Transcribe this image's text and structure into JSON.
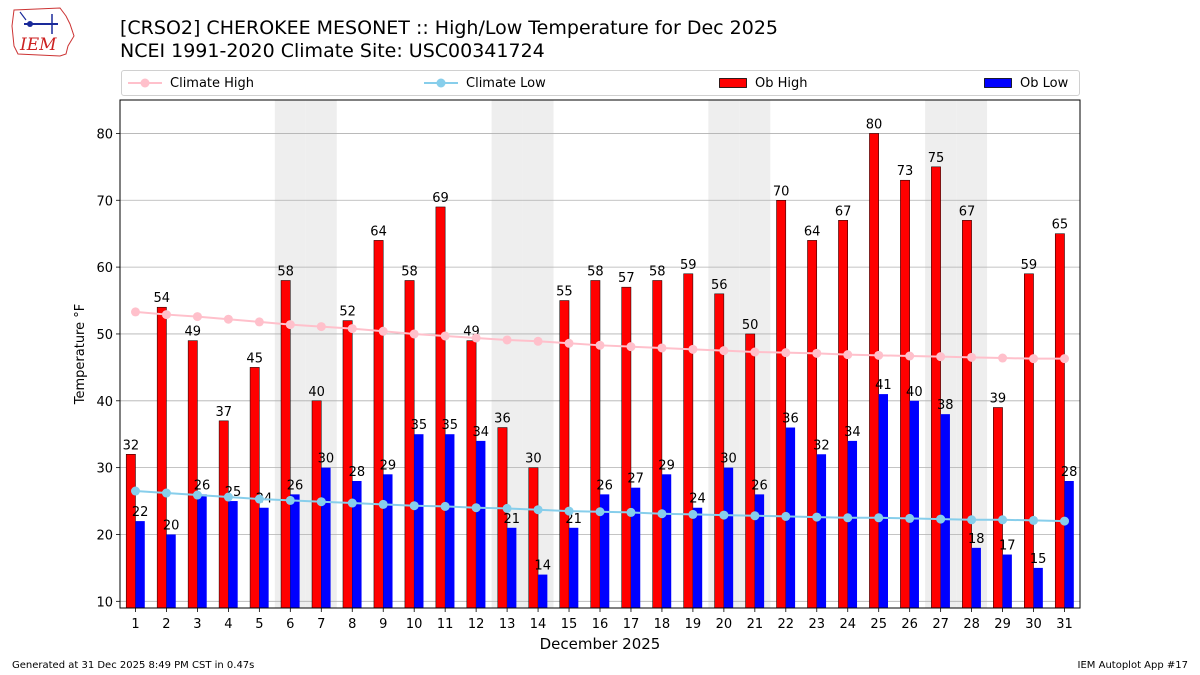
{
  "title_line1": "[CRSO2] CHEROKEE MESONET :: High/Low Temperature for Dec 2025",
  "title_line2": "NCEI 1991-2020 Climate Site: USC00341724",
  "logo_text": "IEM",
  "footer_left": "Generated at 31 Dec 2025 8:49 PM CST in 0.47s",
  "footer_right": "IEM Autoplot App #17",
  "colors": {
    "climate_high": "#ffc0cb",
    "climate_low": "#87ceeb",
    "ob_high": "#ff0000",
    "ob_low": "#0000ff",
    "weekend_band": "#eeeeee",
    "grid": "#b0b0b0"
  },
  "chart_data": {
    "type": "bar",
    "xlabel": "December 2025",
    "ylabel": "Temperature °F",
    "ylim": [
      9,
      85
    ],
    "yticks": [
      10,
      20,
      30,
      40,
      50,
      60,
      70,
      80
    ],
    "grid": "horizontal",
    "legend_position": "top",
    "categories": [
      "1",
      "2",
      "3",
      "4",
      "5",
      "6",
      "7",
      "8",
      "9",
      "10",
      "11",
      "12",
      "13",
      "14",
      "15",
      "16",
      "17",
      "18",
      "19",
      "20",
      "21",
      "22",
      "23",
      "24",
      "25",
      "26",
      "27",
      "28",
      "29",
      "30",
      "31"
    ],
    "weekend_days": [
      6,
      7,
      13,
      14,
      20,
      21,
      27,
      28
    ],
    "series": [
      {
        "name": "Ob High",
        "kind": "bar",
        "color": "#ff0000",
        "values": [
          32,
          54,
          49,
          37,
          45,
          58,
          40,
          52,
          64,
          58,
          69,
          49,
          36,
          30,
          55,
          58,
          57,
          58,
          59,
          56,
          50,
          70,
          64,
          67,
          80,
          73,
          75,
          67,
          39,
          59,
          65
        ]
      },
      {
        "name": "Ob Low",
        "kind": "bar",
        "color": "#0000ff",
        "values": [
          22,
          20,
          26,
          25,
          24,
          26,
          30,
          28,
          29,
          35,
          35,
          34,
          21,
          14,
          21,
          26,
          27,
          29,
          24,
          30,
          26,
          36,
          32,
          34,
          41,
          40,
          38,
          18,
          17,
          15,
          28
        ]
      },
      {
        "name": "Climate High",
        "kind": "line",
        "color": "#ffc0cb",
        "values": [
          53.3,
          52.9,
          52.6,
          52.2,
          51.8,
          51.4,
          51.1,
          50.8,
          50.4,
          50.0,
          49.7,
          49.4,
          49.1,
          48.9,
          48.6,
          48.3,
          48.1,
          47.9,
          47.7,
          47.5,
          47.3,
          47.2,
          47.1,
          46.9,
          46.8,
          46.7,
          46.6,
          46.5,
          46.4,
          46.3,
          46.3
        ]
      },
      {
        "name": "Climate Low",
        "kind": "line",
        "color": "#87ceeb",
        "values": [
          26.5,
          26.2,
          25.9,
          25.6,
          25.3,
          25.1,
          24.9,
          24.7,
          24.5,
          24.3,
          24.2,
          24.0,
          23.9,
          23.7,
          23.5,
          23.4,
          23.3,
          23.1,
          23.0,
          22.9,
          22.8,
          22.7,
          22.6,
          22.5,
          22.5,
          22.4,
          22.3,
          22.2,
          22.2,
          22.1,
          22.0
        ]
      }
    ]
  },
  "legend": {
    "climate_high": "Climate High",
    "climate_low": "Climate Low",
    "ob_high": "Ob High",
    "ob_low": "Ob Low"
  }
}
